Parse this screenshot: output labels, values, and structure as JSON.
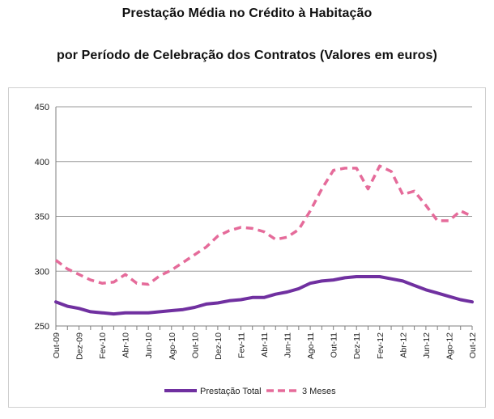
{
  "title_line1": "Prestação Média no Crédito à Habitação",
  "title_line2": "por Período de Celebração dos Contratos (Valores em euros)",
  "chart_data": {
    "type": "line",
    "title": "Prestação Média no Crédito à Habitação por Período de Celebração dos Contratos (Valores em euros)",
    "xlabel": "",
    "ylabel": "",
    "ylim": [
      250,
      450
    ],
    "yticks": [
      250,
      300,
      350,
      400,
      450
    ],
    "grid": true,
    "legend": "bottom",
    "categories": [
      "Out-09",
      "Nov-09",
      "Dez-09",
      "Jan-10",
      "Fev-10",
      "Mar-10",
      "Abr-10",
      "Mai-10",
      "Jun-10",
      "Jul-10",
      "Ago-10",
      "Set-10",
      "Out-10",
      "Nov-10",
      "Dez-10",
      "Jan-11",
      "Fev-11",
      "Mar-11",
      "Abr-11",
      "Mai-11",
      "Jun-11",
      "Jul-11",
      "Ago-11",
      "Set-11",
      "Out-11",
      "Nov-11",
      "Dez-11",
      "Jan-12",
      "Fev-12",
      "Mar-12",
      "Abr-12",
      "Mai-12",
      "Jun-12",
      "Jul-12",
      "Ago-12",
      "Set-12",
      "Out-12"
    ],
    "tick_labels": [
      "Out-09",
      "Dez-09",
      "Fev-10",
      "Abr-10",
      "Jun-10",
      "Ago-10",
      "Out-10",
      "Dez-10",
      "Fev-11",
      "Abr-11",
      "Jun-11",
      "Ago-11",
      "Out-11",
      "Dez-11",
      "Fev-12",
      "Abr-12",
      "Jun-12",
      "Ago-12",
      "Out-12"
    ],
    "series": [
      {
        "name": "Prestação Total",
        "color": "#7030a0",
        "dash": false,
        "values": [
          272,
          268,
          266,
          263,
          262,
          261,
          262,
          262,
          262,
          263,
          264,
          265,
          267,
          270,
          271,
          273,
          274,
          276,
          276,
          279,
          281,
          284,
          289,
          291,
          292,
          294,
          295,
          295,
          295,
          293,
          291,
          287,
          283,
          280,
          277,
          274,
          272
        ]
      },
      {
        "name": "3 Meses",
        "color": "#e56b9a",
        "dash": true,
        "values": [
          310,
          302,
          297,
          292,
          289,
          290,
          297,
          289,
          288,
          296,
          301,
          308,
          315,
          322,
          332,
          337,
          340,
          339,
          336,
          329,
          331,
          338,
          355,
          375,
          392,
          394,
          394,
          375,
          396,
          391,
          370,
          373,
          360,
          346,
          346,
          355,
          350
        ]
      }
    ]
  }
}
